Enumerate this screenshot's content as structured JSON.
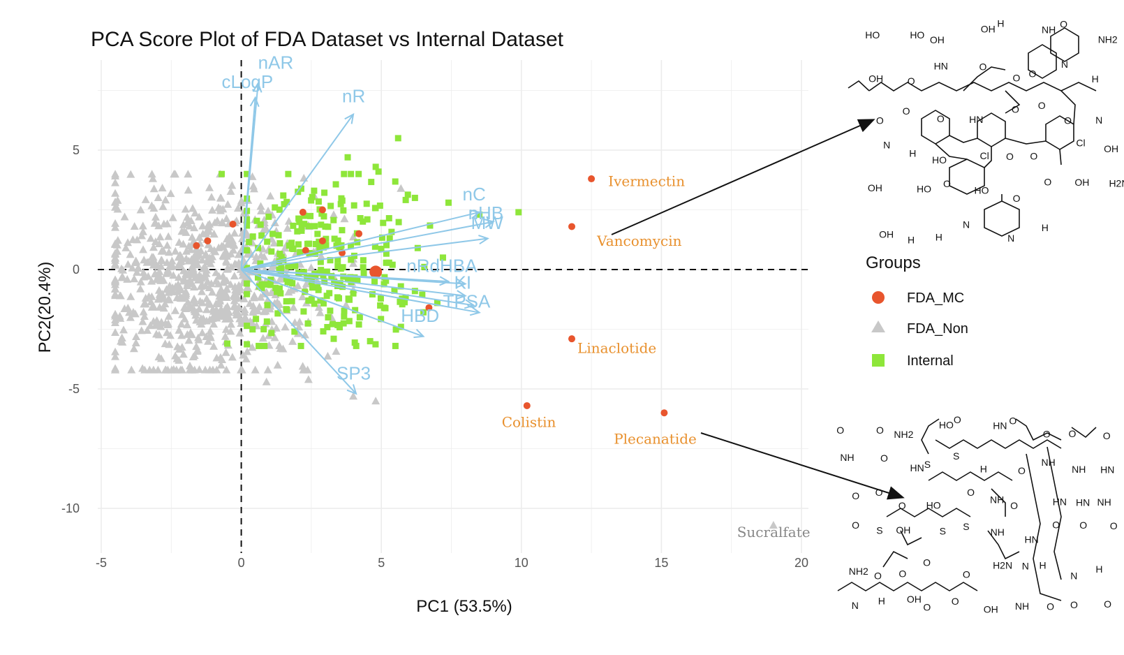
{
  "chart_data": {
    "type": "scatter",
    "title": "PCA Score Plot of FDA Dataset vs Internal Dataset",
    "xlabel": "PC1 (53.5%)",
    "ylabel": "PC2(20.4%)",
    "xlim": [
      -5,
      20
    ],
    "ylim": [
      -11.5,
      8.6
    ],
    "x_ticks": [
      -5,
      0,
      5,
      10,
      15,
      20
    ],
    "x_tick_labels": [
      "-5",
      "0",
      "5",
      "10",
      "15",
      "20"
    ],
    "y_ticks": [
      -10,
      -5,
      0,
      5
    ],
    "y_tick_labels": [
      "-10",
      "-5",
      "0",
      "5"
    ],
    "grid": true,
    "legend": {
      "title": "Groups",
      "placement": "right",
      "entries": [
        {
          "name": "FDA_MC",
          "shape": "circle",
          "color": "#e8552d"
        },
        {
          "name": "FDA_Non",
          "shape": "triangle",
          "color": "#c8c8c8"
        },
        {
          "name": "Internal",
          "shape": "square",
          "color": "#8ee63a"
        }
      ]
    },
    "series": [
      {
        "name": "FDA_MC",
        "points": [
          [
            12.5,
            3.8
          ],
          [
            11.8,
            1.8
          ],
          [
            11.8,
            -2.9
          ],
          [
            10.2,
            -5.7
          ],
          [
            15.1,
            -6.0
          ],
          [
            -1.6,
            1.0
          ],
          [
            -1.2,
            1.2
          ],
          [
            -0.3,
            1.9
          ],
          [
            2.2,
            2.4
          ],
          [
            2.9,
            2.5
          ],
          [
            2.3,
            0.8
          ],
          [
            2.9,
            1.2
          ],
          [
            4.2,
            1.5
          ],
          [
            3.6,
            0.7
          ],
          [
            4.8,
            -0.1
          ],
          [
            6.7,
            -1.6
          ]
        ]
      },
      {
        "name": "FDA_Non",
        "points": [
          [
            19.0,
            -10.7
          ],
          [
            4.0,
            -5.3
          ],
          [
            4.8,
            -5.5
          ],
          [
            2.4,
            -4.6
          ],
          [
            0.5,
            -4.2
          ],
          [
            0.9,
            -4.7
          ],
          [
            5.7,
            3.4
          ],
          [
            3.3,
            2.3
          ],
          [
            1.3,
            -4.0
          ],
          [
            -4.3,
            -3.0
          ]
        ],
        "cloud": {
          "count": 760,
          "x_range": [
            -4.5,
            4.0
          ],
          "y_range": [
            -4.2,
            4.0
          ],
          "center": [
            -1.3,
            -0.5
          ]
        }
      },
      {
        "name": "Internal",
        "points": [
          [
            5.6,
            5.5
          ],
          [
            4.8,
            4.3
          ],
          [
            4.9,
            4.1
          ],
          [
            3.8,
            4.7
          ],
          [
            9.9,
            2.4
          ],
          [
            8.5,
            2.3
          ],
          [
            -0.7,
            4.0
          ],
          [
            -0.5,
            -3.1
          ],
          [
            6.2,
            3.0
          ],
          [
            7.4,
            2.8
          ],
          [
            0.6,
            0.9
          ],
          [
            1.2,
            2.6
          ],
          [
            2.0,
            1.6
          ],
          [
            3.0,
            1.8
          ],
          [
            4.5,
            2.1
          ],
          [
            5.3,
            1.3
          ],
          [
            6.3,
            0.9
          ],
          [
            7.2,
            0.5
          ],
          [
            1.3,
            -0.8
          ],
          [
            2.4,
            -1.3
          ],
          [
            3.1,
            -2.0
          ],
          [
            4.2,
            -2.3
          ],
          [
            5.1,
            -1.6
          ],
          [
            6.2,
            -0.9
          ],
          [
            0.8,
            -2.5
          ],
          [
            1.9,
            -2.6
          ],
          [
            3.3,
            -2.9
          ],
          [
            4.6,
            -3.0
          ],
          [
            5.7,
            -2.4
          ],
          [
            7.0,
            -1.4
          ],
          [
            1.5,
            3.1
          ],
          [
            2.6,
            3.3
          ],
          [
            3.4,
            1.0
          ],
          [
            4.0,
            -1.0
          ],
          [
            5.4,
            0.2
          ]
        ],
        "cloud": {
          "count": 240,
          "x_range": [
            0.2,
            7.5
          ],
          "y_range": [
            -3.2,
            4.0
          ],
          "center": [
            2.8,
            0.2
          ]
        }
      }
    ],
    "loadings": [
      {
        "name": "nAR",
        "x": 0.5,
        "y": 7.2
      },
      {
        "name": "cLogP",
        "x": 0.6,
        "y": 7.8
      },
      {
        "name": "nR",
        "x": 4.0,
        "y": 6.5
      },
      {
        "name": "nC",
        "x": 8.5,
        "y": 2.4
      },
      {
        "name": "nHB",
        "x": 9.0,
        "y": 2.0
      },
      {
        "name": "MW",
        "x": 8.8,
        "y": 1.3
      },
      {
        "name": "nRdHBA",
        "x": 7.4,
        "y": -0.5
      },
      {
        "name": "KI",
        "x": 8.0,
        "y": -1.1
      },
      {
        "name": "TPSA",
        "x": 8.5,
        "y": -1.8
      },
      {
        "name": "HBD",
        "x": 6.5,
        "y": -2.8
      },
      {
        "name": "SP3",
        "x": 4.1,
        "y": -5.2
      },
      {
        "name": "",
        "x": 8.3,
        "y": -1.5
      },
      {
        "name": "",
        "x": 8.0,
        "y": -0.6
      }
    ],
    "loading_labels": [
      {
        "text": "nAR",
        "x": 0.6,
        "y": 8.4
      },
      {
        "text": "cLogP",
        "x": -0.7,
        "y": 7.6
      },
      {
        "text": "nR",
        "x": 3.6,
        "y": 7.0
      },
      {
        "text": "nC",
        "x": 7.9,
        "y": 2.9
      },
      {
        "text": "nHB",
        "x": 8.1,
        "y": 2.1
      },
      {
        "text": "MW",
        "x": 8.2,
        "y": 1.7
      },
      {
        "text": "nRdHBA",
        "x": 5.9,
        "y": -0.1
      },
      {
        "text": "KI",
        "x": 7.6,
        "y": -0.8
      },
      {
        "text": "TPSA",
        "x": 7.2,
        "y": -1.6
      },
      {
        "text": "HBD",
        "x": 5.7,
        "y": -2.2
      },
      {
        "text": "SP3",
        "x": 3.4,
        "y": -4.6
      }
    ],
    "annotations": [
      {
        "text": "Ivermectin",
        "x": 13.1,
        "y": 3.5,
        "color": "#e8902d"
      },
      {
        "text": "Vancomycin",
        "x": 12.7,
        "y": 1.0,
        "color": "#e8902d"
      },
      {
        "text": "Linaclotide",
        "x": 12.0,
        "y": -3.5,
        "color": "#e8902d"
      },
      {
        "text": "Colistin",
        "x": 9.3,
        "y": -6.6,
        "color": "#e8902d"
      },
      {
        "text": "Plecanatide",
        "x": 13.3,
        "y": -7.3,
        "color": "#e8902d"
      },
      {
        "text": "Sucralfate",
        "x": 17.7,
        "y": -11.2,
        "color": "#888888"
      }
    ]
  },
  "structures": {
    "vancomycin_labels": [
      "HO",
      "HO",
      "OH",
      "OH",
      "H",
      "NH",
      "O",
      "NH2",
      "OH",
      "O",
      "HN",
      "O",
      "O",
      "O",
      "N",
      "H",
      "O",
      "O",
      "O",
      "HN",
      "O",
      "O",
      "O",
      "N",
      "N",
      "H",
      "HO",
      "Cl",
      "O",
      "O",
      "Cl",
      "OH",
      "OH",
      "HO",
      "O",
      "HO",
      "O",
      "O",
      "OH",
      "H2N",
      "OH",
      "H",
      "H",
      "N",
      "N",
      "H"
    ],
    "plecanatide_labels": [
      "O",
      "O",
      "NH2",
      "HO",
      "O",
      "HN",
      "O",
      "O",
      "O",
      "O",
      "NH",
      "O",
      "HN",
      "S",
      "S",
      "H",
      "O",
      "NH",
      "NH",
      "HN",
      "O",
      "O",
      "O",
      "HO",
      "O",
      "NH",
      "O",
      "HN",
      "HN",
      "NH",
      "O",
      "S",
      "OH",
      "S",
      "S",
      "NH",
      "HN",
      "O",
      "O",
      "O",
      "NH2",
      "O",
      "O",
      "O",
      "O",
      "H2N",
      "N",
      "H",
      "N",
      "H",
      "N",
      "H",
      "OH",
      "O",
      "O",
      "OH",
      "NH",
      "O",
      "O",
      "O"
    ]
  }
}
